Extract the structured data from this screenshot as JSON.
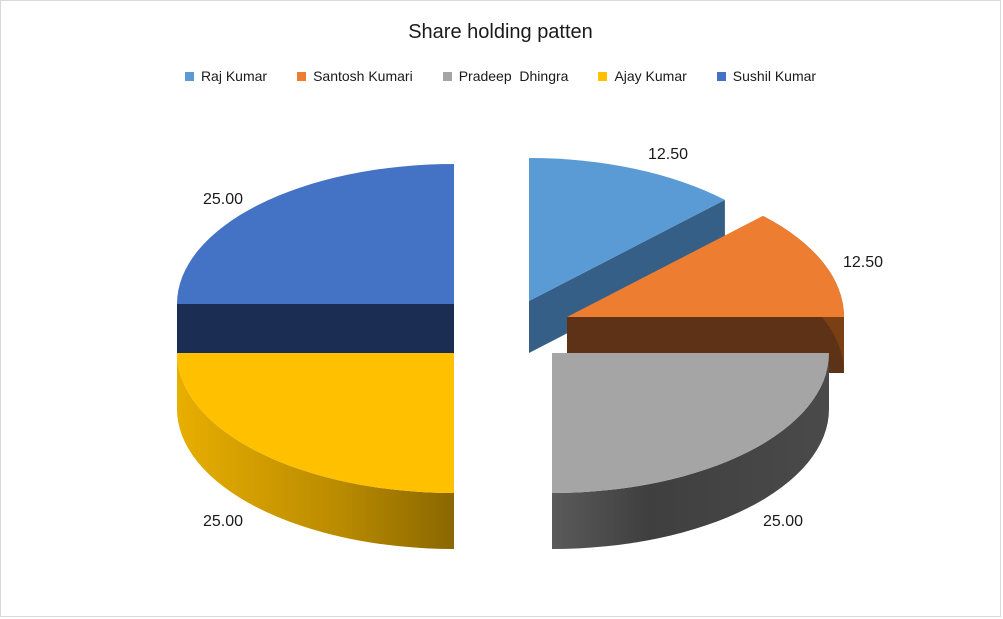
{
  "chart_data": {
    "type": "pie",
    "title": "Share holding patten",
    "categories": [
      "Raj Kumar",
      "Santosh Kumari",
      "Pradeep  Dhingra",
      "Ajay Kumar",
      "Sushil Kumar"
    ],
    "values": [
      12.5,
      12.5,
      25.0,
      25.0,
      25.0
    ],
    "data_labels": [
      "12.50",
      "12.50",
      "25.00",
      "25.00",
      "25.00"
    ],
    "colors": [
      "#5b9bd5",
      "#ed7d31",
      "#a5a5a5",
      "#ffc000",
      "#4472c4"
    ],
    "style": "3d-exploded",
    "legend_position": "top",
    "grid": false
  }
}
